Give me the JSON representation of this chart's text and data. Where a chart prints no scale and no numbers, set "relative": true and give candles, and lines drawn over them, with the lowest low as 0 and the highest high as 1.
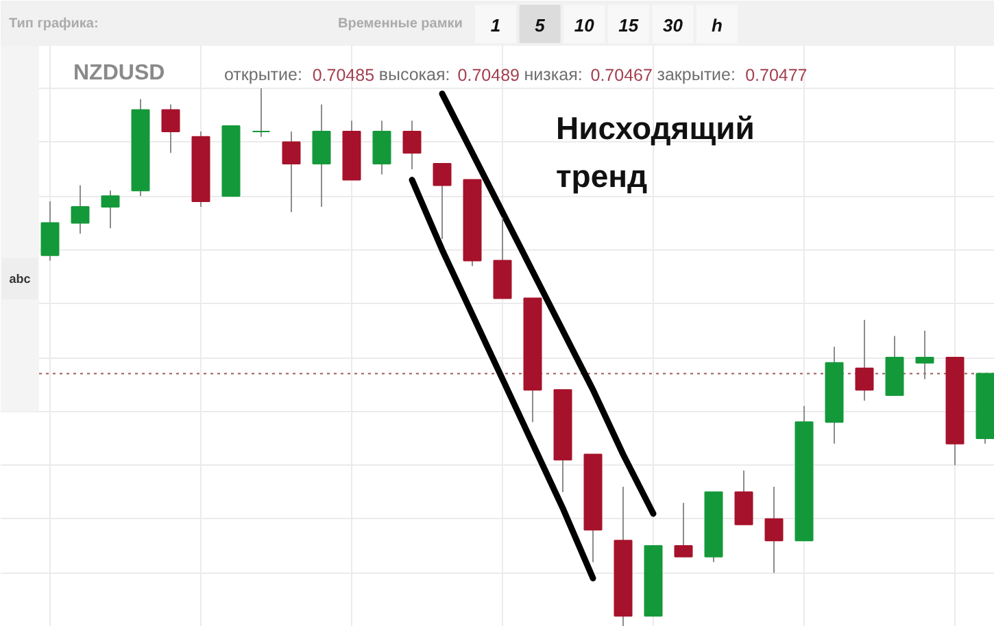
{
  "chart_data": {
    "type": "candlestick",
    "title": "NZDUSD",
    "subtitle": "открытие: 0.70485 высокая: 0.70489 низкая: 0.70467 закрытие: 0.70477",
    "annotations": [
      "Нисходящий тренд",
      "Тип графика:",
      "Временные рамки",
      "1 5 10 15 30 h",
      "abc"
    ],
    "relative": true,
    "grid": true,
    "categories": [
      null,
      null,
      null,
      null,
      null,
      null,
      null,
      null,
      null,
      null,
      null,
      null,
      null,
      null,
      null,
      null,
      null,
      null,
      null,
      null,
      null,
      null,
      null,
      null,
      null,
      null,
      null,
      null,
      null,
      null,
      null,
      null
    ],
    "ohlc": [
      [
        0.69,
        0.79,
        0.68,
        0.75
      ],
      [
        0.75,
        0.82,
        0.73,
        0.78
      ],
      [
        0.78,
        0.81,
        0.74,
        0.8
      ],
      [
        0.81,
        0.98,
        0.8,
        0.96
      ],
      [
        0.96,
        0.97,
        0.88,
        0.92
      ],
      [
        0.91,
        0.92,
        0.78,
        0.79
      ],
      [
        0.8,
        0.93,
        0.8,
        0.93
      ],
      [
        0.92,
        1.0,
        0.91,
        0.92
      ],
      [
        0.9,
        0.92,
        0.77,
        0.86
      ],
      [
        0.86,
        0.97,
        0.78,
        0.92
      ],
      [
        0.92,
        0.94,
        0.83,
        0.83
      ],
      [
        0.86,
        0.94,
        0.84,
        0.92
      ],
      [
        0.92,
        0.94,
        0.85,
        0.88
      ],
      [
        0.86,
        0.86,
        0.72,
        0.82
      ],
      [
        0.83,
        0.83,
        0.67,
        0.68
      ],
      [
        0.68,
        0.76,
        0.61,
        0.61
      ],
      [
        0.61,
        0.61,
        0.38,
        0.44
      ],
      [
        0.44,
        0.44,
        0.25,
        0.31
      ],
      [
        0.32,
        0.32,
        0.12,
        0.18
      ],
      [
        0.16,
        0.26,
        0.0,
        0.02
      ],
      [
        0.02,
        0.15,
        0.02,
        0.15
      ],
      [
        0.15,
        0.23,
        0.13,
        0.13
      ],
      [
        0.13,
        0.25,
        0.12,
        0.25
      ],
      [
        0.25,
        0.29,
        0.19,
        0.19
      ],
      [
        0.2,
        0.26,
        0.1,
        0.16
      ],
      [
        0.16,
        0.41,
        0.16,
        0.38
      ],
      [
        0.38,
        0.52,
        0.34,
        0.49
      ],
      [
        0.48,
        0.57,
        0.42,
        0.44
      ],
      [
        0.43,
        0.54,
        0.43,
        0.5
      ],
      [
        0.49,
        0.55,
        0.46,
        0.5
      ],
      [
        0.5,
        0.5,
        0.3,
        0.34
      ],
      [
        0.35,
        0.47,
        0.34,
        0.47
      ]
    ],
    "colors": [
      "#14993a",
      "#14993a",
      "#14993a",
      "#14993a",
      "#a6122b",
      "#a6122b",
      "#14993a",
      "#14993a",
      "#a6122b",
      "#14993a",
      "#a6122b",
      "#14993a",
      "#a6122b",
      "#a6122b",
      "#a6122b",
      "#a6122b",
      "#a6122b",
      "#a6122b",
      "#a6122b",
      "#a6122b",
      "#14993a",
      "#a6122b",
      "#14993a",
      "#a6122b",
      "#a6122b",
      "#14993a",
      "#14993a",
      "#a6122b",
      "#14993a",
      "#14993a",
      "#a6122b",
      "#14993a"
    ],
    "series": [
      {
        "type": "line",
        "color": "#000000",
        "values": [
          null,
          null,
          null,
          null,
          null,
          null,
          null,
          null,
          null,
          null,
          null,
          null,
          null,
          0.99,
          0.88,
          0.77,
          0.66,
          0.55,
          0.44,
          0.32,
          0.21,
          null,
          null,
          null,
          null,
          null,
          null,
          null,
          null,
          null,
          null,
          null
        ]
      },
      {
        "type": "line",
        "color": "#000000",
        "values": [
          null,
          null,
          null,
          null,
          null,
          null,
          null,
          null,
          null,
          null,
          null,
          null,
          0.83,
          0.7,
          0.58,
          0.46,
          0.34,
          0.22,
          0.09,
          null,
          null,
          null,
          null,
          null,
          null,
          null,
          null,
          null,
          null,
          null,
          null,
          null
        ]
      }
    ],
    "ref_lines": [
      {
        "axis": "y",
        "value": 0.47,
        "color": "#a05a5a",
        "line_style": "dotted"
      }
    ]
  }
}
